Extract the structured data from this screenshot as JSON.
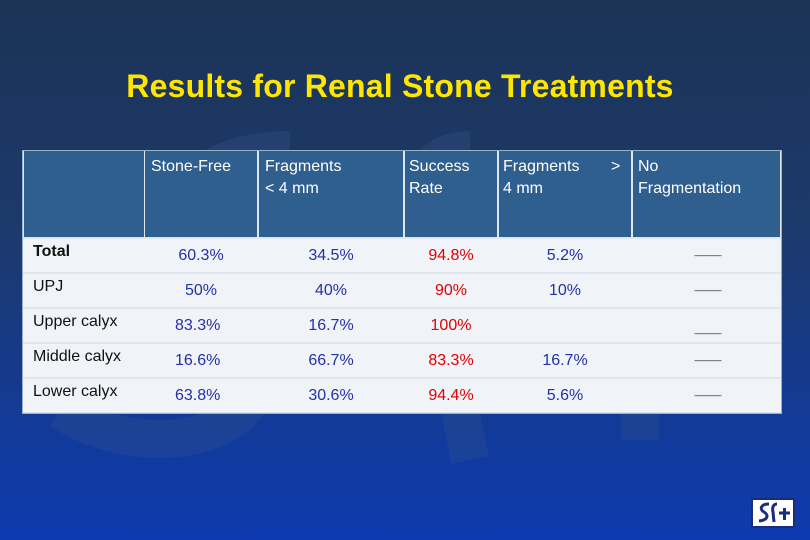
{
  "title": "Results for Renal Stone Treatments",
  "colors": {
    "title": "#ffe600",
    "header": "#2f5f8e",
    "value": "#2330a8",
    "success": "#e00000"
  },
  "table": {
    "headers": [
      "Stone-Free",
      "Fragments\n< 4 mm",
      "Success\nRate",
      "Fragments\n4 mm",
      ">",
      "No\nFragmentation"
    ],
    "rows": [
      {
        "label": "Total",
        "stone_free": "60.3%",
        "frag_lt4": "34.5%",
        "success": "94.8%",
        "frag_gt4": "5.2%",
        "none": "___"
      },
      {
        "label": "UPJ",
        "stone_free": "50%",
        "frag_lt4": "40%",
        "success": "90%",
        "frag_gt4": "10%",
        "none": "___"
      },
      {
        "label": "Upper calyx",
        "stone_free": "83.3%",
        "frag_lt4": "16.7%",
        "success": "100%",
        "frag_gt4": "",
        "none": "___"
      },
      {
        "label": "Middle calyx",
        "stone_free": "16.6%",
        "frag_lt4": "66.7%",
        "success": "83.3%",
        "frag_gt4": "16.7%",
        "none": "___"
      },
      {
        "label": "Lower calyx",
        "stone_free": "63.8%",
        "frag_lt4": "30.6%",
        "success": "94.4%",
        "frag_gt4": "5.6%",
        "none": "___"
      }
    ]
  },
  "logo": {
    "icon": "sfa-logo-icon"
  }
}
